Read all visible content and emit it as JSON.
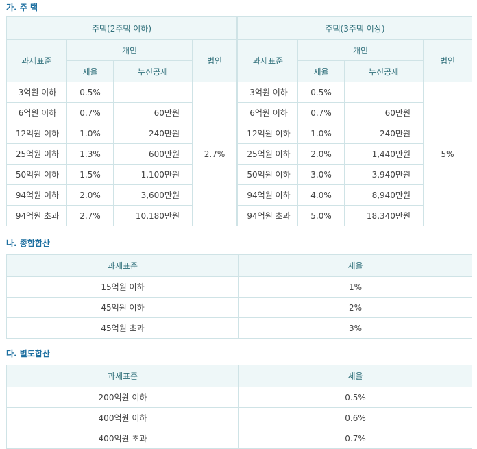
{
  "housing": {
    "title": "가. 주 택",
    "left_group": "주택(2주택 이하)",
    "right_group": "주택(3주택 이상)",
    "col_base": "과세표준",
    "col_individual": "개인",
    "col_rate": "세율",
    "col_deduction": "누진공제",
    "col_corp": "법인",
    "left_corp_rate": "2.7%",
    "right_corp_rate": "5%",
    "left_rows": [
      {
        "base": "3억원 이하",
        "rate": "0.5%",
        "deduction": ""
      },
      {
        "base": "6억원 이하",
        "rate": "0.7%",
        "deduction": "60만원"
      },
      {
        "base": "12억원 이하",
        "rate": "1.0%",
        "deduction": "240만원"
      },
      {
        "base": "25억원 이하",
        "rate": "1.3%",
        "deduction": "600만원"
      },
      {
        "base": "50억원 이하",
        "rate": "1.5%",
        "deduction": "1,100만원"
      },
      {
        "base": "94억원 이하",
        "rate": "2.0%",
        "deduction": "3,600만원"
      },
      {
        "base": "94억원 초과",
        "rate": "2.7%",
        "deduction": "10,180만원"
      }
    ],
    "right_rows": [
      {
        "base": "3억원 이하",
        "rate": "0.5%",
        "deduction": ""
      },
      {
        "base": "6억원 이하",
        "rate": "0.7%",
        "deduction": "60만원"
      },
      {
        "base": "12억원 이하",
        "rate": "1.0%",
        "deduction": "240만원"
      },
      {
        "base": "25억원 이하",
        "rate": "2.0%",
        "deduction": "1,440만원"
      },
      {
        "base": "50억원 이하",
        "rate": "3.0%",
        "deduction": "3,940만원"
      },
      {
        "base": "94억원 이하",
        "rate": "4.0%",
        "deduction": "8,940만원"
      },
      {
        "base": "94억원 초과",
        "rate": "5.0%",
        "deduction": "18,340만원"
      }
    ]
  },
  "comprehensive": {
    "title": "나. 종합합산",
    "col_base": "과세표준",
    "col_rate": "세율",
    "rows": [
      {
        "base": "15억원 이하",
        "rate": "1%"
      },
      {
        "base": "45억원 이하",
        "rate": "2%"
      },
      {
        "base": "45억원 초과",
        "rate": "3%"
      }
    ]
  },
  "separate": {
    "title": "다. 별도합산",
    "col_base": "과세표준",
    "col_rate": "세율",
    "rows": [
      {
        "base": "200억원 이하",
        "rate": "0.5%"
      },
      {
        "base": "400억원 이하",
        "rate": "0.6%"
      },
      {
        "base": "400억원 초과",
        "rate": "0.7%"
      }
    ]
  }
}
